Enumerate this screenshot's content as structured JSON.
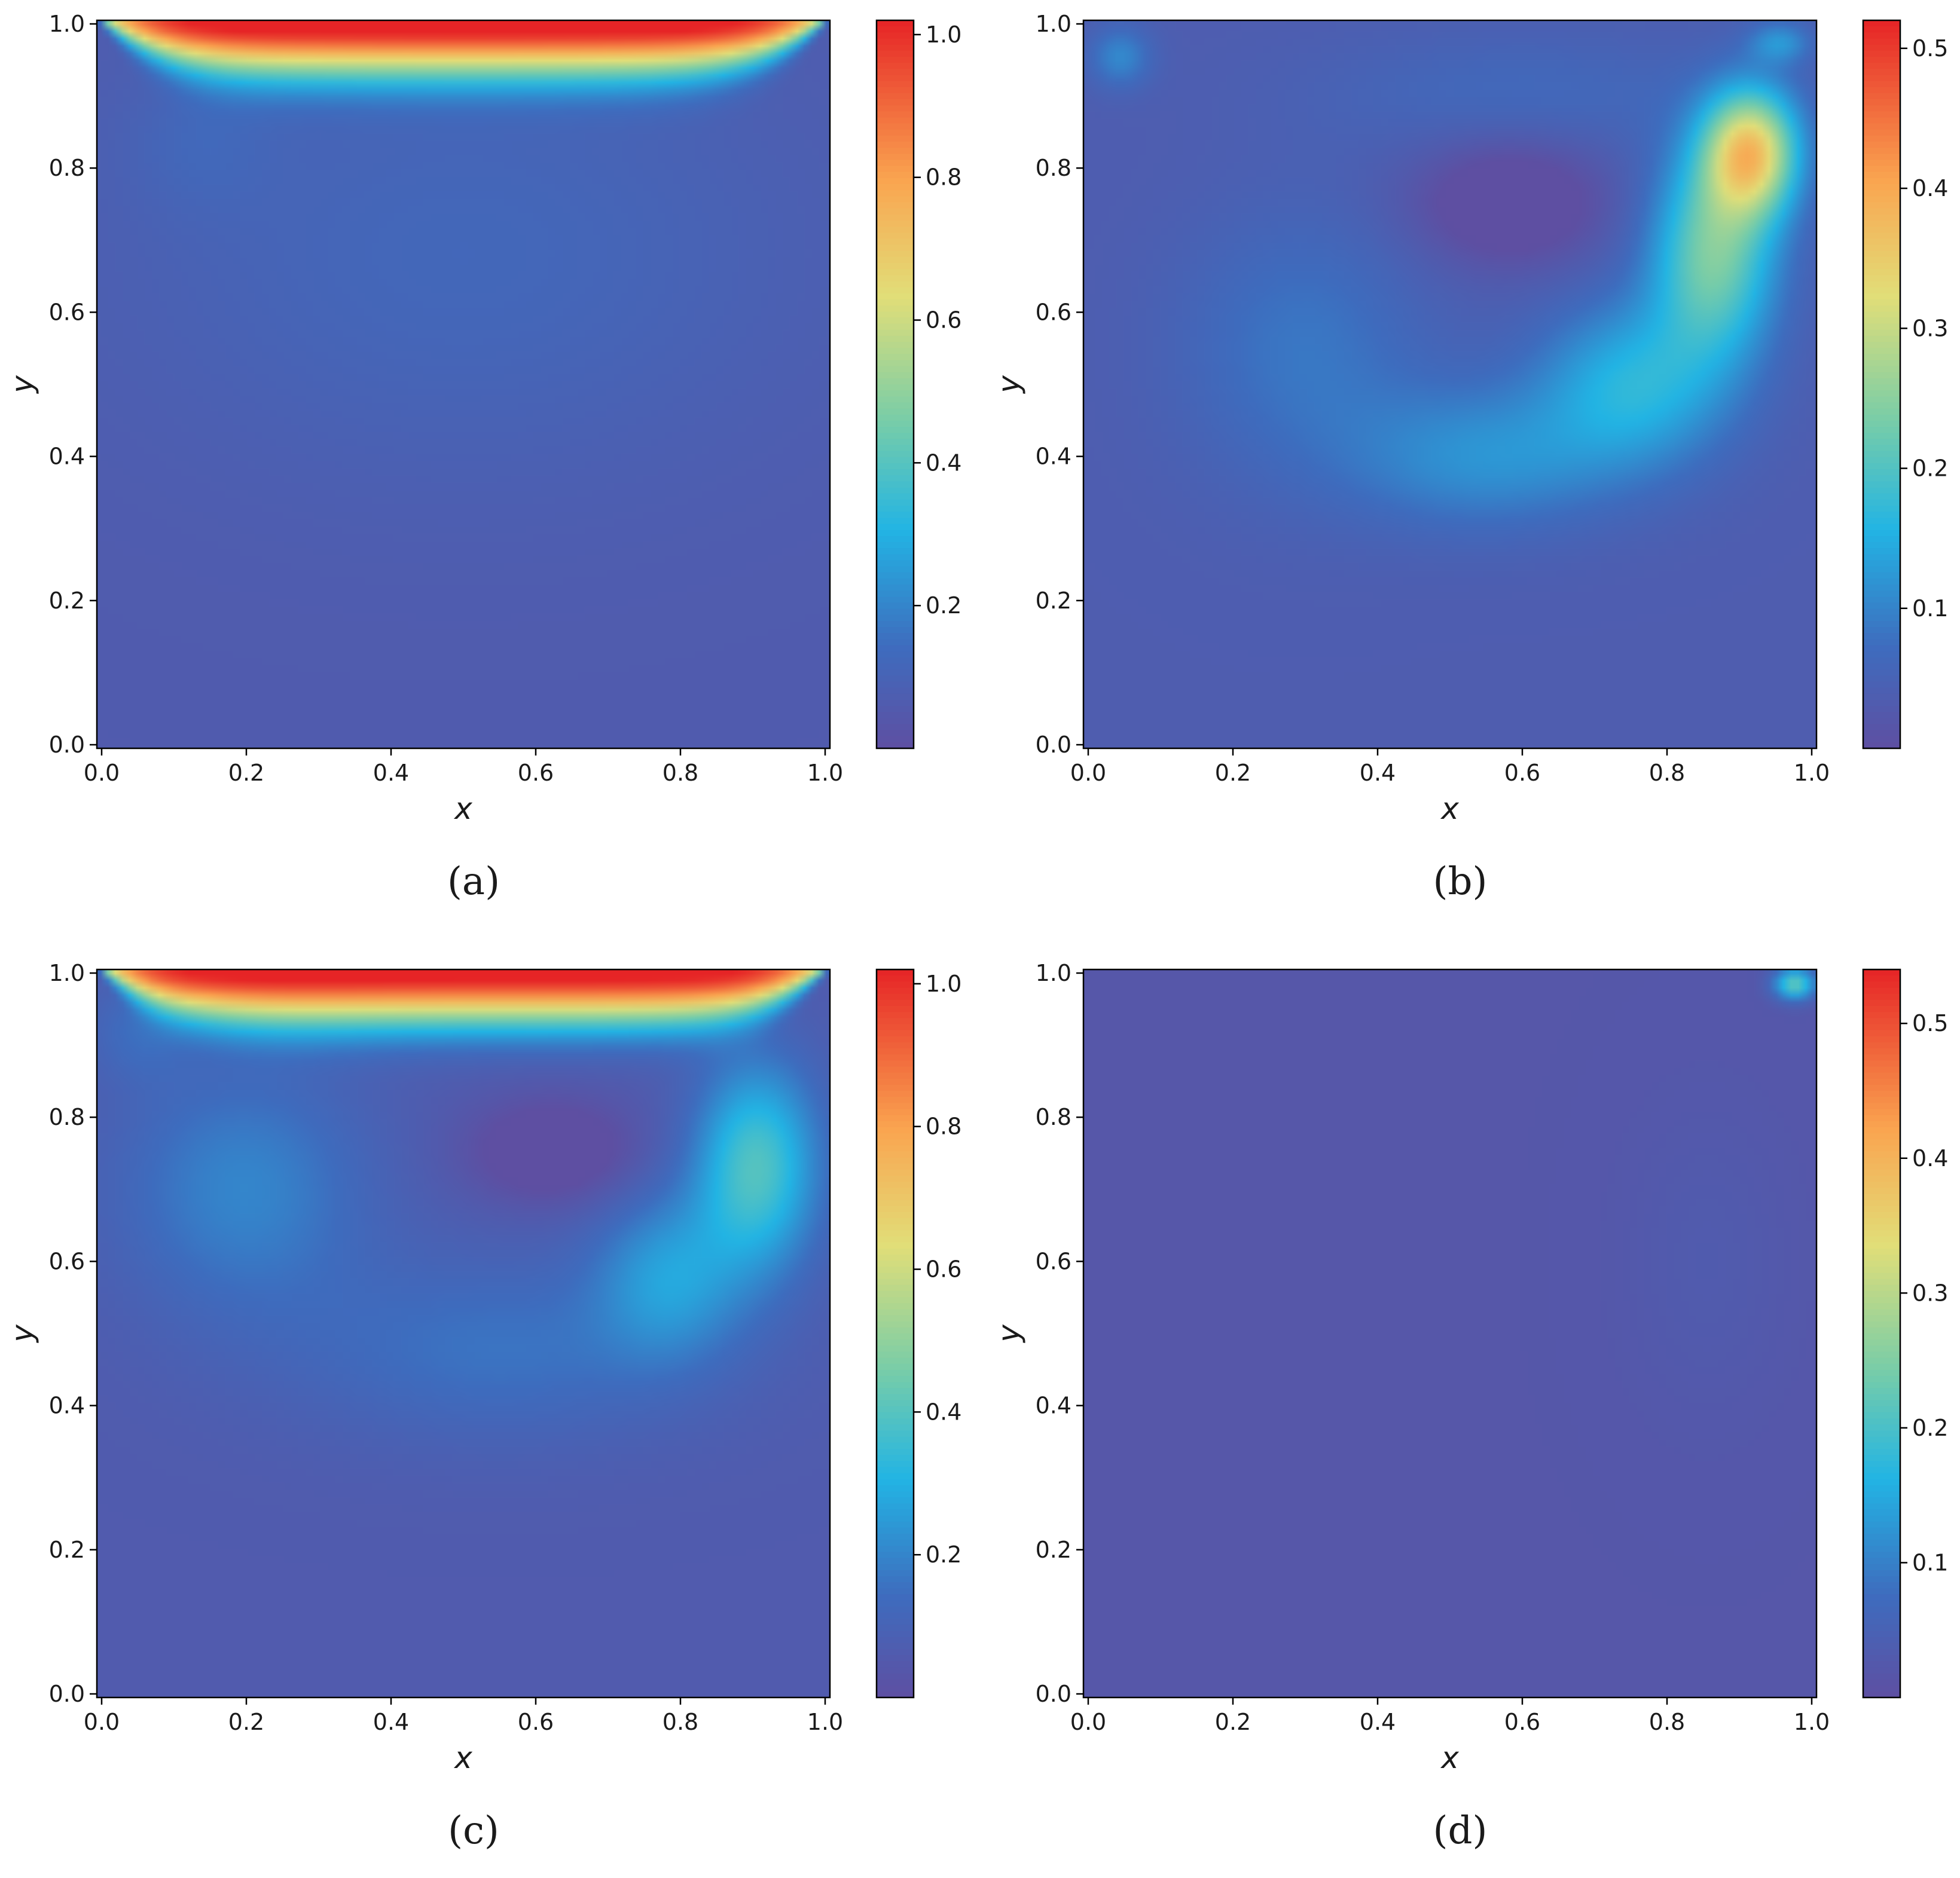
{
  "chart_data": [
    {
      "type": "heatmap",
      "panel": "a",
      "caption": "(a)",
      "xlabel": "x",
      "ylabel": "y",
      "xlim": [
        0,
        1
      ],
      "ylim": [
        0,
        1
      ],
      "xticks": [
        "0.0",
        "0.2",
        "0.4",
        "0.6",
        "0.8",
        "1.0"
      ],
      "yticks": [
        "0.0",
        "0.2",
        "0.4",
        "0.6",
        "0.8",
        "1.0"
      ],
      "colorbar": {
        "range": [
          0.0,
          1.02
        ],
        "ticks": [
          "0.2",
          "0.4",
          "0.6",
          "0.8",
          "1.0"
        ]
      },
      "features": {
        "base": 0.06,
        "top_lid": {
          "value": 1.0
        },
        "blobs": [
          {
            "x": 0.5,
            "y": 0.68,
            "sx": 0.33,
            "sy": 0.22,
            "v": 0.06
          },
          {
            "x": 0.14,
            "y": 0.84,
            "sx": 0.07,
            "sy": 0.07,
            "v": 0.04
          }
        ]
      }
    },
    {
      "type": "heatmap",
      "panel": "b",
      "caption": "(b)",
      "xlabel": "x",
      "ylabel": "y",
      "xlim": [
        0,
        1
      ],
      "ylim": [
        0,
        1
      ],
      "xticks": [
        "0.0",
        "0.2",
        "0.4",
        "0.6",
        "0.8",
        "1.0"
      ],
      "yticks": [
        "0.0",
        "0.2",
        "0.4",
        "0.6",
        "0.8",
        "1.0"
      ],
      "colorbar": {
        "range": [
          0.0,
          0.52
        ],
        "ticks": [
          "0.1",
          "0.2",
          "0.3",
          "0.4",
          "0.5"
        ]
      },
      "features": {
        "base": 0.035,
        "blobs": [
          {
            "x": 0.91,
            "y": 0.82,
            "sx": 0.045,
            "sy": 0.06,
            "v": 0.3
          },
          {
            "x": 0.86,
            "y": 0.68,
            "sx": 0.06,
            "sy": 0.1,
            "v": 0.2
          },
          {
            "x": 0.75,
            "y": 0.5,
            "sx": 0.09,
            "sy": 0.08,
            "v": 0.12
          },
          {
            "x": 0.55,
            "y": 0.4,
            "sx": 0.13,
            "sy": 0.07,
            "v": 0.08
          },
          {
            "x": 0.3,
            "y": 0.55,
            "sx": 0.12,
            "sy": 0.13,
            "v": 0.05
          },
          {
            "x": 0.6,
            "y": 0.9,
            "sx": 0.2,
            "sy": 0.06,
            "v": 0.03
          },
          {
            "x": 0.05,
            "y": 0.95,
            "sx": 0.03,
            "sy": 0.03,
            "v": 0.07
          },
          {
            "x": 0.95,
            "y": 0.97,
            "sx": 0.03,
            "sy": 0.02,
            "v": 0.08
          }
        ],
        "holes": [
          {
            "x": 0.58,
            "y": 0.75,
            "sx": 0.09,
            "sy": 0.06,
            "v": 0.07
          }
        ]
      }
    },
    {
      "type": "heatmap",
      "panel": "c",
      "caption": "(c)",
      "xlabel": "x",
      "ylabel": "y",
      "xlim": [
        0,
        1
      ],
      "ylim": [
        0,
        1
      ],
      "xticks": [
        "0.0",
        "0.2",
        "0.4",
        "0.6",
        "0.8",
        "1.0"
      ],
      "yticks": [
        "0.0",
        "0.2",
        "0.4",
        "0.6",
        "0.8",
        "1.0"
      ],
      "colorbar": {
        "range": [
          0.0,
          1.02
        ],
        "ticks": [
          "0.2",
          "0.4",
          "0.6",
          "0.8",
          "1.0"
        ]
      },
      "features": {
        "base": 0.06,
        "top_lid": {
          "value": 1.0
        },
        "blobs": [
          {
            "x": 0.9,
            "y": 0.73,
            "sx": 0.06,
            "sy": 0.1,
            "v": 0.33
          },
          {
            "x": 0.78,
            "y": 0.58,
            "sx": 0.07,
            "sy": 0.08,
            "v": 0.18
          },
          {
            "x": 0.55,
            "y": 0.48,
            "sx": 0.2,
            "sy": 0.09,
            "v": 0.1
          },
          {
            "x": 0.2,
            "y": 0.7,
            "sx": 0.12,
            "sy": 0.12,
            "v": 0.14
          },
          {
            "x": 0.06,
            "y": 0.92,
            "sx": 0.05,
            "sy": 0.05,
            "v": 0.08
          }
        ],
        "holes": [
          {
            "x": 0.62,
            "y": 0.75,
            "sx": 0.08,
            "sy": 0.05,
            "v": 0.12
          }
        ]
      }
    },
    {
      "type": "heatmap",
      "panel": "d",
      "caption": "(d)",
      "xlabel": "x",
      "ylabel": "y",
      "xlim": [
        0,
        1
      ],
      "ylim": [
        0,
        1
      ],
      "xticks": [
        "0.0",
        "0.2",
        "0.4",
        "0.6",
        "0.8",
        "1.0"
      ],
      "yticks": [
        "0.0",
        "0.2",
        "0.4",
        "0.6",
        "0.8",
        "1.0"
      ],
      "colorbar": {
        "range": [
          0.0,
          0.54
        ],
        "ticks": [
          "0.1",
          "0.2",
          "0.3",
          "0.4",
          "0.5"
        ]
      },
      "features": {
        "base": 0.02,
        "blobs": [
          {
            "x": 0.85,
            "y": 0.6,
            "sx": 0.08,
            "sy": 0.15,
            "v": 0.012
          },
          {
            "x": 0.97,
            "y": 0.98,
            "sx": 0.02,
            "sy": 0.015,
            "v": 0.2
          }
        ]
      }
    }
  ]
}
